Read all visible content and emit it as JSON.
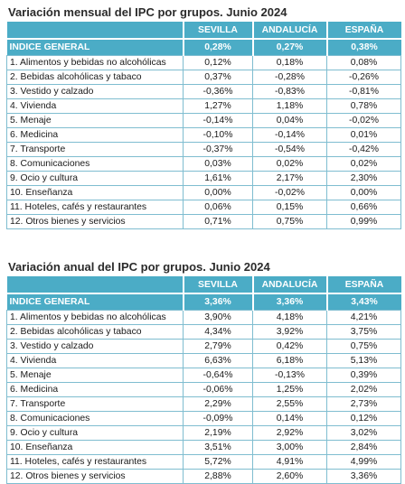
{
  "monthly": {
    "title": "Variación mensual del IPC por grupos. Junio 2024",
    "headers": [
      "",
      "SEVILLA",
      "ANDALUCÍA",
      "ESPAÑA"
    ],
    "general": {
      "label": "INDICE GENERAL",
      "values": [
        "0,28%",
        "0,27%",
        "0,38%"
      ]
    },
    "rows": [
      {
        "label": "1. Alimentos y bebidas no alcohólicas",
        "values": [
          "0,12%",
          "0,18%",
          "0,08%"
        ]
      },
      {
        "label": "2. Bebidas alcohólicas y tabaco",
        "values": [
          "0,37%",
          "-0,28%",
          "-0,26%"
        ]
      },
      {
        "label": "3. Vestido y calzado",
        "values": [
          "-0,36%",
          "-0,83%",
          "-0,81%"
        ]
      },
      {
        "label": "4. Vivienda",
        "values": [
          "1,27%",
          "1,18%",
          "0,78%"
        ]
      },
      {
        "label": "5. Menaje",
        "values": [
          "-0,14%",
          "0,04%",
          "-0,02%"
        ]
      },
      {
        "label": "6. Medicina",
        "values": [
          "-0,10%",
          "-0,14%",
          "0,01%"
        ]
      },
      {
        "label": "7. Transporte",
        "values": [
          "-0,37%",
          "-0,54%",
          "-0,42%"
        ]
      },
      {
        "label": "8. Comunicaciones",
        "values": [
          "0,03%",
          "0,02%",
          "0,02%"
        ]
      },
      {
        "label": "9. Ocio y cultura",
        "values": [
          "1,61%",
          "2,17%",
          "2,30%"
        ]
      },
      {
        "label": "10. Enseñanza",
        "values": [
          "0,00%",
          "-0,02%",
          "0,00%"
        ]
      },
      {
        "label": "11. Hoteles, cafés y restaurantes",
        "values": [
          "0,06%",
          "0,15%",
          "0,66%"
        ]
      },
      {
        "label": "12. Otros bienes y servicios",
        "values": [
          "0,71%",
          "0,75%",
          "0,99%"
        ]
      }
    ]
  },
  "annual": {
    "title": "Variación anual del IPC por grupos. Junio 2024",
    "headers": [
      "",
      "SEVILLA",
      "ANDALUCÍA",
      "ESPAÑA"
    ],
    "general": {
      "label": "INDICE GENERAL",
      "values": [
        "3,36%",
        "3,36%",
        "3,43%"
      ]
    },
    "rows": [
      {
        "label": "1. Alimentos y bebidas no alcohólicas",
        "values": [
          "3,90%",
          "4,18%",
          "4,21%"
        ]
      },
      {
        "label": "2. Bebidas alcohólicas y tabaco",
        "values": [
          "4,34%",
          "3,92%",
          "3,75%"
        ]
      },
      {
        "label": "3. Vestido y calzado",
        "values": [
          "2,79%",
          "0,42%",
          "0,75%"
        ]
      },
      {
        "label": "4. Vivienda",
        "values": [
          "6,63%",
          "6,18%",
          "5,13%"
        ]
      },
      {
        "label": "5. Menaje",
        "values": [
          "-0,64%",
          "-0,13%",
          "0,39%"
        ]
      },
      {
        "label": "6. Medicina",
        "values": [
          "-0,06%",
          "1,25%",
          "2,02%"
        ]
      },
      {
        "label": "7. Transporte",
        "values": [
          "2,29%",
          "2,55%",
          "2,73%"
        ]
      },
      {
        "label": "8. Comunicaciones",
        "values": [
          "-0,09%",
          "0,14%",
          "0,12%"
        ]
      },
      {
        "label": "9. Ocio y cultura",
        "values": [
          "2,19%",
          "2,92%",
          "3,02%"
        ]
      },
      {
        "label": "10. Enseñanza",
        "values": [
          "3,51%",
          "3,00%",
          "2,84%"
        ]
      },
      {
        "label": "11. Hoteles, cafés y restaurantes",
        "values": [
          "5,72%",
          "4,91%",
          "4,99%"
        ]
      },
      {
        "label": "12. Otros bienes y servicios",
        "values": [
          "2,88%",
          "2,60%",
          "3,36%"
        ]
      }
    ]
  },
  "colors": {
    "header_bg": "#4bacc6",
    "header_text": "#ffffff",
    "border": "#7fbdd0"
  }
}
